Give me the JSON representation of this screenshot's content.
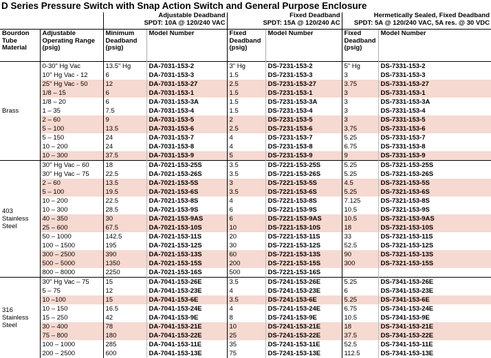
{
  "title": "D Series Pressure Switch with Snap Action Switch and General Purpose Enclosure",
  "column_groups": [
    {
      "title": "Adjustable Deadband",
      "subtitle": "SPDT: 10A @ 120/240 VAC"
    },
    {
      "title": "Fixed Deadband",
      "subtitle": "SPDT: 15A @ 120/240 AC"
    },
    {
      "title": "Hermetically Sealed, Fixed Deadband",
      "subtitle": "SPDT: 5A @ 120/240 VAC, 5A res. @ 30 VDC"
    }
  ],
  "columns": [
    "Bourdon Tube Material",
    "Adjustable Operating Range (psig)",
    "Minimum Deadband (psig)",
    "Model Number",
    "Fixed Deadband (psig)",
    "Model Number",
    "Fixed Deadband (psig)",
    "Model Number"
  ],
  "groups": [
    {
      "material": "Brass",
      "rows": [
        [
          "0-30\" Hg Vac",
          "13.5\" Hg",
          "DA-7031-153-2",
          "3\" Hg",
          "DS-7231-153-2",
          "5\" Hg",
          "DS-7331-153-2"
        ],
        [
          "10\" Hg Vac - 12",
          "6",
          "DA-7031-153-3",
          "1.5",
          "DS-7231-153-3",
          "3",
          "DS-7331-153-3"
        ],
        [
          "25\" Hg Vac - 50",
          "12",
          "DA-7031-153-27",
          "2.5",
          "DS-7231-153-27",
          "3.75",
          "DS-7331-153-27"
        ],
        [
          "1/8 – 15",
          "6",
          "DA-7031-153-1",
          "1.5",
          "DS-7231-153-1",
          "3",
          "DS-7331-153-1"
        ],
        [
          "1/8 – 20",
          "6",
          "DA-7031-153-3A",
          "1.5",
          "DS-7231-153-3A",
          "3",
          "DS-7331-153-3A"
        ],
        [
          "1 – 35",
          "7.5",
          "DA-7031-153-4",
          "1.5",
          "DS-7231-153-4",
          "3",
          "DS-7331-153-4"
        ],
        [
          "2 – 60",
          "9",
          "DA-7031-153-5",
          "2",
          "DS-7231-153-5",
          "3",
          "DS-7331-153-5"
        ],
        [
          "5 – 100",
          "13.5",
          "DA-7031-153-6",
          "2.5",
          "DS-7231-153-6",
          "3.75",
          "DS-7331-153-6"
        ],
        [
          "5 – 150",
          "24",
          "DA-7031-153-7",
          "4",
          "DS-7231-153-7",
          "5.25",
          "DS-7331-153-7"
        ],
        [
          "10 – 200",
          "24",
          "DA-7031-153-8",
          "4",
          "DS-7231-153-8",
          "6.75",
          "DS-7331-153-8"
        ],
        [
          "10 – 300",
          "37.5",
          "DA-7031-153-9",
          "5",
          "DS-7231-153-9",
          "9",
          "DS-7331-153-9"
        ]
      ]
    },
    {
      "material": "403 Stainless Steel",
      "rows": [
        [
          "30\" Hg Vac – 60",
          "18",
          "DA-7021-153-25S",
          "3.5",
          "DS-7221-153-25S",
          "5.25",
          "DS-7321-153-25S"
        ],
        [
          "30\" Hg Vac – 75",
          "22.5",
          "DA-7021-153-26S",
          "3.5",
          "DS-7221-153-26S",
          "5.25",
          "DS-7321-153-26S"
        ],
        [
          "2 – 60",
          "13.5",
          "DA-7021-153-5S",
          "3",
          "DS-7221-153-5S",
          "4.5",
          "DS-7321-153-5S"
        ],
        [
          "5 – 100",
          "19.5",
          "DA-7021-153-6S",
          "3.5",
          "DS-7221-153-6S",
          "5.25",
          "DS-7321-153-6S"
        ],
        [
          "10 – 200",
          "22.5",
          "DA-7021-153-8S",
          "4",
          "DS-7221-153-8S",
          "7.125",
          "DS-7321-153-8S"
        ],
        [
          "10 – 300",
          "28.5",
          "DA-7021-153-9S",
          "6",
          "DS-7221-153-9S",
          "10.5",
          "DS-7321-153-9S"
        ],
        [
          "40 – 350",
          "30",
          "DA-7021-153-9AS",
          "6",
          "DS-7221-153-9AS",
          "10.5",
          "DS-7321-153-9AS"
        ],
        [
          "25 – 600",
          "67.5",
          "DA-7021-153-10S",
          "10",
          "DS-7221-153-10S",
          "18",
          "DS-7321-153-10S"
        ],
        [
          "50 – 1000",
          "142.5",
          "DA-7021-153-11S",
          "20",
          "DS-7221-153-11S",
          "33",
          "DS-7321-153-11S"
        ],
        [
          "100 – 1500",
          "195",
          "DA-7021-153-12S",
          "30",
          "DS-7221-153-12S",
          "52.5",
          "DS-7321-153-12S"
        ],
        [
          "300 – 2500",
          "390",
          "DA-7021-153-13S",
          "60",
          "DS-7221-153-13S",
          "90",
          "DS-7321-153-13S"
        ],
        [
          "500 – 5000",
          "1350",
          "DA-7021-153-15S",
          "200",
          "DS-7221-153-15S",
          "300",
          "DS-7321-153-15S"
        ],
        [
          "800 – 8000",
          "2250",
          "DA-7021-153-16S",
          "500",
          "DS-7221-153-16S"
        ]
      ]
    },
    {
      "material": "316 Stainless Steel",
      "rows": [
        [
          "30\" Hg Vac – 75",
          "15",
          "DA-7041-153-26E",
          "3.5",
          "DS-7241-153-26E",
          "5.25",
          "DS-7341-153-26E"
        ],
        [
          "5 – 75",
          "12",
          "DA-7041-153-23E",
          "4",
          "DS-7241-153-23E",
          "6",
          "DS-7341-153-23E"
        ],
        [
          "10 –100",
          "15",
          "DA-7041-153-6E",
          "3.5",
          "DS-7241-153-6E",
          "5.25",
          "DS-7341-153-6E"
        ],
        [
          "10 – 150",
          "16.5",
          "DA-7041-153-24E",
          "4",
          "DS-7241-153-24E",
          "6.75",
          "DS-7341-153-24E"
        ],
        [
          "15 – 250",
          "42",
          "DA-7041-153-9E",
          "8",
          "DS-7241-153-9E",
          "10.5",
          "DS-7341-153-9E"
        ],
        [
          "30 – 400",
          "78",
          "DA-7041-153-21E",
          "10",
          "DS-7241-153-21E",
          "18",
          "DS-7341-153-21E"
        ],
        [
          "75 – 800",
          "180",
          "DA-7041-153-22E",
          "25",
          "DS-7241-153-22E",
          "37.5",
          "DS-7341-153-22E"
        ],
        [
          "100 – 1000",
          "285",
          "DA-7041-153-11E",
          "35",
          "DS-7241-153-11E",
          "52.5",
          "DS-7341-153-11E"
        ],
        [
          "200 – 2500",
          "600",
          "DA-7041-153-13E",
          "75",
          "DS-7241-153-13E",
          "112.5",
          "DS-7341-153-13E"
        ]
      ]
    }
  ]
}
